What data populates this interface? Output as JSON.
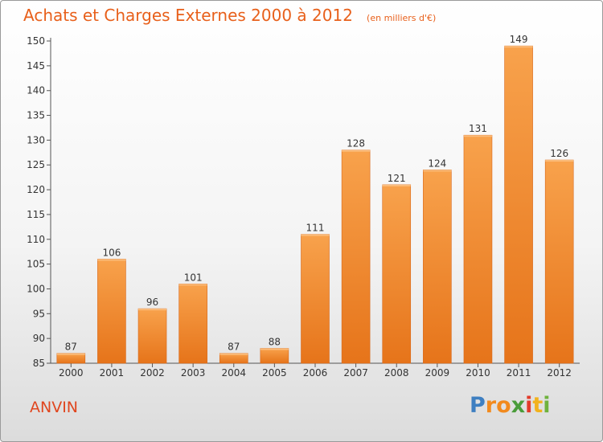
{
  "chart_data": {
    "type": "bar",
    "title": "Achats et Charges Externes 2000 à 2012",
    "subtitle": "(en milliers d'€)",
    "categories": [
      "2000",
      "2001",
      "2002",
      "2003",
      "2004",
      "2005",
      "2006",
      "2007",
      "2008",
      "2009",
      "2010",
      "2011",
      "2012"
    ],
    "values": [
      87,
      106,
      96,
      101,
      87,
      88,
      111,
      128,
      121,
      124,
      131,
      149,
      126
    ],
    "ylim": [
      85,
      150
    ],
    "yticks": [
      85,
      90,
      95,
      100,
      105,
      110,
      115,
      120,
      125,
      130,
      135,
      140,
      145,
      150
    ],
    "grid": false,
    "bar_color": "#f07f22"
  },
  "commune": "ANVIN",
  "logo": {
    "letters": [
      "P",
      "r",
      "o",
      "x",
      "i",
      "t",
      "i"
    ],
    "colors": [
      "#3e7fc1",
      "#f28a1d",
      "#f28a1d",
      "#4a9c3a",
      "#e23b2b",
      "#f2b21d",
      "#6fb23d"
    ]
  }
}
